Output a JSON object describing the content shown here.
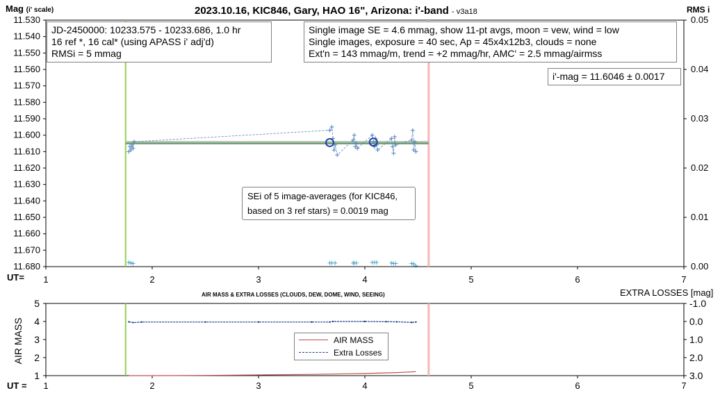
{
  "chart_data": [
    {
      "type": "scatter",
      "title": "2023.10.16, KIC846, Gary, HAO 16\", Arizona: i'-band",
      "version": "- v3a18",
      "ylabel": "Mag",
      "ylabel_sub": "(i' scale)",
      "y2label": "RMS i",
      "xlabel": "UT=",
      "xlim": [
        1,
        7
      ],
      "ylim": [
        11.53,
        11.68
      ],
      "y_reversed": true,
      "y2lim": [
        0.0,
        0.05
      ],
      "x_ticks": [
        "1",
        "2",
        "3",
        "4",
        "5",
        "6",
        "7"
      ],
      "y_ticks": [
        "11.530",
        "11.540",
        "11.550",
        "11.560",
        "11.570",
        "11.580",
        "11.590",
        "11.600",
        "11.610",
        "11.620",
        "11.630",
        "11.640",
        "11.650",
        "11.660",
        "11.670",
        "11.680"
      ],
      "y2_ticks": [
        "0.05",
        "0.04",
        "0.03",
        "0.02",
        "0.01",
        "0.00"
      ],
      "start_line_ut": 1.75,
      "end_line_ut": 4.6,
      "average_mag": 11.6046,
      "average_line_x": [
        1.75,
        4.6
      ],
      "info_left": [
        "JD-2450000: 10233.575 - 10233.686, 1.0  hr",
        "16 ref *, 16 cal* (using APASS i' adj'd)",
        "RMSi = 5 mmag"
      ],
      "info_right": [
        "Single image SE = 4.6 mmag, show 11-pt avgs, moon = vew, wind = low",
        "Single images, exposure = 40 sec, Ap = 45x4x12b3, clouds = none",
        "Ext'n = 143 mmag/m, trend = +2 mmag/hr, AMC' = 2.5 mmag/airmss"
      ],
      "result": "i'-mag = 11.6046 ± 0.0017",
      "sei_note": [
        "SEi of 5 image-averages (for KIC846,",
        "based on 3 ref stars) = 0.0019 mag"
      ],
      "mag_points": {
        "x": [
          1.78,
          1.79,
          1.8,
          1.81,
          1.82,
          1.83,
          3.67,
          3.69,
          3.7,
          3.71,
          3.72,
          3.74,
          3.89,
          3.9,
          3.91,
          3.92,
          3.93,
          4.07,
          4.08,
          4.09,
          4.1,
          4.11,
          4.12,
          4.25,
          4.26,
          4.27,
          4.28,
          4.29,
          4.44,
          4.45,
          4.46,
          4.47,
          4.48
        ],
        "y": [
          11.61,
          11.607,
          11.609,
          11.606,
          11.608,
          11.604,
          11.597,
          11.595,
          11.602,
          11.609,
          11.606,
          11.612,
          11.603,
          11.6,
          11.607,
          11.605,
          11.608,
          11.6,
          11.604,
          11.607,
          11.602,
          11.606,
          11.609,
          11.602,
          11.607,
          11.611,
          11.601,
          11.606,
          11.603,
          11.597,
          11.609,
          11.604,
          11.61
        ]
      },
      "avg_points": {
        "x": [
          3.67,
          4.08
        ],
        "y": [
          11.6045,
          11.6042
        ]
      },
      "rms_points": {
        "x": [
          1.78,
          1.8,
          1.82,
          3.67,
          3.69,
          3.72,
          3.89,
          3.9,
          3.92,
          4.07,
          4.09,
          4.11,
          4.25,
          4.27,
          4.29,
          4.44,
          4.46,
          4.48
        ],
        "y": [
          0.0007,
          0.0006,
          0.0005,
          0.0006,
          0.0006,
          0.0006,
          0.0006,
          0.0006,
          0.0006,
          0.0007,
          0.0007,
          0.0007,
          0.0006,
          0.0005,
          0.0005,
          0.0005,
          0.0004,
          0.0
        ]
      }
    },
    {
      "type": "line",
      "title": "AIR MASS & EXTRA LOSSES (CLOUDS, DEW, DOME, WIND, SEEING)",
      "ylabel": "AIR MASS",
      "y2label": "EXTRA LOSSES [mag]",
      "xlabel": "UT =",
      "xlim": [
        1,
        7
      ],
      "ylim": [
        1,
        5
      ],
      "y2lim": [
        -1.0,
        3.0
      ],
      "y2_reversed": true,
      "x_ticks": [
        "1",
        "2",
        "3",
        "4",
        "5",
        "6",
        "7"
      ],
      "y_ticks": [
        "5",
        "4",
        "3",
        "2",
        "1"
      ],
      "y2_ticks": [
        "-1.0",
        "0.0",
        "1.0",
        "2.0",
        "3.0"
      ],
      "start_line_ut": 1.75,
      "end_line_ut": 4.6,
      "legend": [
        "AIR MASS",
        "Extra Losses"
      ],
      "series": [
        {
          "name": "AIR MASS",
          "color": "#c0504d",
          "x": [
            1.78,
            2.0,
            2.5,
            3.0,
            3.5,
            3.7,
            4.0,
            4.3,
            4.48
          ],
          "y": [
            1.0,
            1.0,
            1.01,
            1.04,
            1.07,
            1.09,
            1.12,
            1.17,
            1.22
          ]
        },
        {
          "name": "Extra Losses",
          "color": "#1f3c88",
          "x": [
            1.78,
            1.82,
            1.9,
            2.5,
            3.0,
            3.5,
            3.67,
            3.7,
            4.0,
            4.2,
            4.3,
            4.44,
            4.48
          ],
          "y": [
            0.02,
            0.06,
            0.03,
            0.03,
            0.03,
            0.03,
            0.03,
            0.0,
            0.0,
            0.01,
            0.02,
            0.05,
            0.03
          ]
        }
      ]
    }
  ],
  "colors": {
    "start_line": "#92d050",
    "end_line": "#f4b6b6",
    "average_line": "#5b9e5f",
    "average_bar": "#bfbfbf",
    "mag_points": "#4f81bd",
    "avg_circles": "#1f3fa8",
    "rms_points": "#4ba3c3"
  }
}
